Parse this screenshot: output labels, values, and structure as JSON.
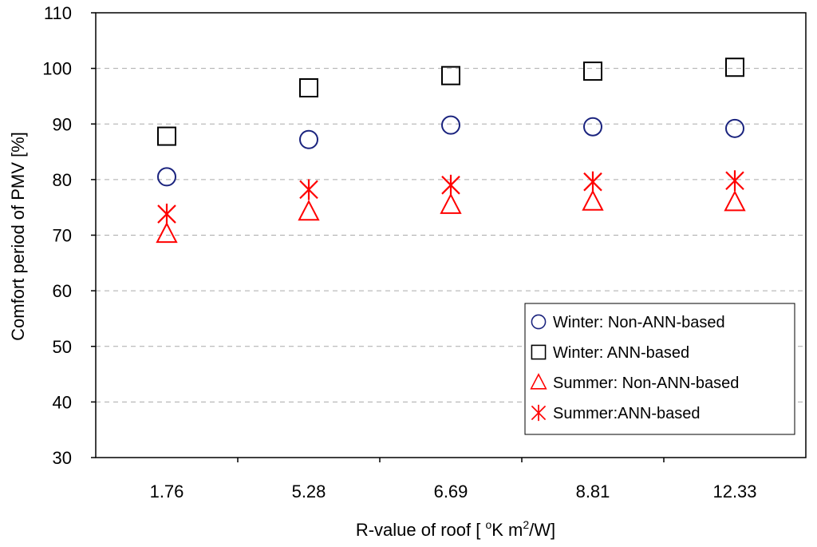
{
  "chart_data": {
    "type": "scatter",
    "title": "",
    "xlabel_main": "R-value of roof [ ",
    "xlabel_sup1": "o",
    "xlabel_mid": "K m",
    "xlabel_sup2": "2",
    "xlabel_end": "/W]",
    "ylabel": "Comfort period of PMV  [%]",
    "categories": [
      "1.76",
      "5.28",
      "6.69",
      "8.81",
      "12.33"
    ],
    "ylim": [
      30,
      110
    ],
    "yticks": [
      30,
      40,
      50,
      60,
      70,
      80,
      90,
      100,
      110
    ],
    "grid": "horizontal dashed",
    "legend_position": "bottom-right",
    "series": [
      {
        "name": "Winter: Non-ANN-based",
        "marker": "circle",
        "color": "#1a237e",
        "values": [
          80.5,
          87.2,
          89.8,
          89.5,
          89.2
        ]
      },
      {
        "name": "Winter: ANN-based",
        "marker": "square",
        "color": "#000000",
        "values": [
          87.8,
          96.5,
          98.7,
          99.5,
          100.2
        ]
      },
      {
        "name": "Summer: Non-ANN-based",
        "marker": "triangle",
        "color": "#ff0000",
        "values": [
          70.2,
          74.2,
          75.4,
          76.0,
          75.9
        ]
      },
      {
        "name": "Summer:ANN-based",
        "marker": "asterisk",
        "color": "#ff0000",
        "values": [
          73.8,
          78.2,
          79.0,
          79.6,
          79.8
        ]
      }
    ]
  }
}
